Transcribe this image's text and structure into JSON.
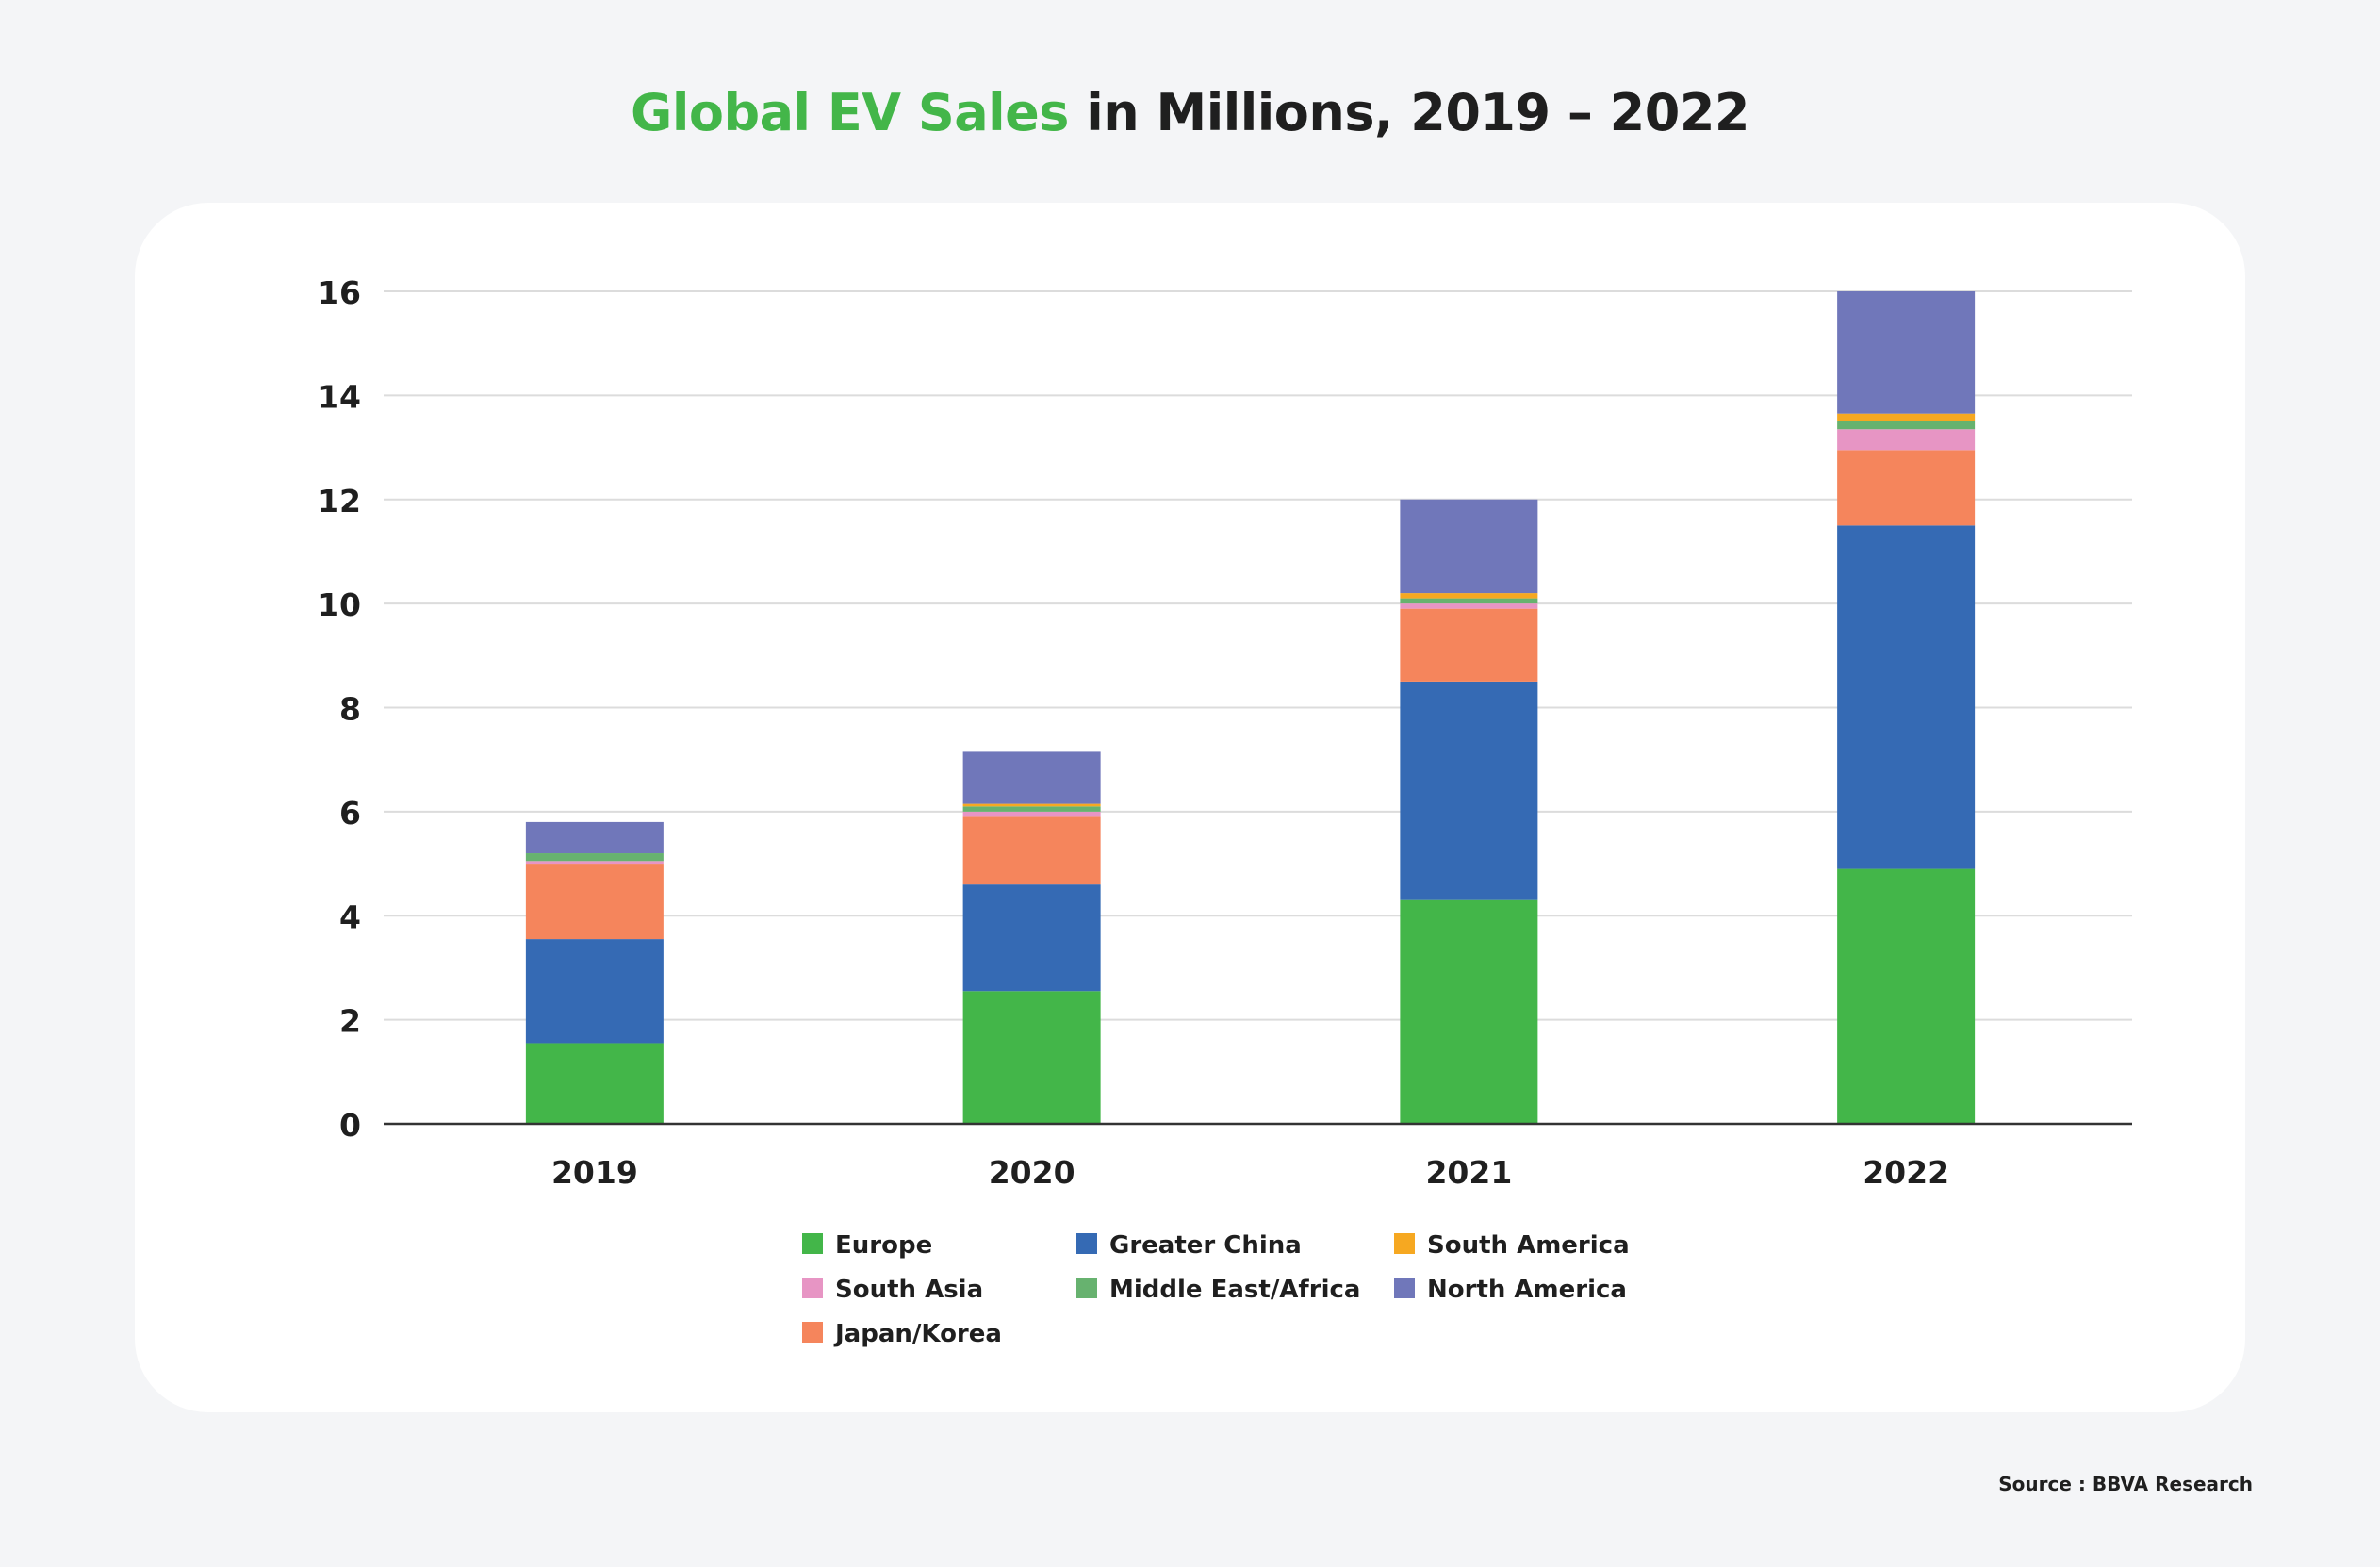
{
  "title": {
    "highlight": "Global EV Sales",
    "rest": " in Millions, 2019 – 2022"
  },
  "source": "Source : BBVA Research",
  "chart_data": {
    "type": "bar",
    "stacked": true,
    "title": "Global EV Sales in Millions, 2019 – 2022",
    "xlabel": "",
    "ylabel": "",
    "categories": [
      "2019",
      "2020",
      "2021",
      "2022"
    ],
    "ylim": [
      0,
      16
    ],
    "yticks": [
      0,
      2,
      4,
      6,
      8,
      10,
      12,
      14,
      16
    ],
    "grid": true,
    "legend_position": "bottom",
    "series": [
      {
        "name": "Europe",
        "color": "#43b649",
        "values": [
          1.55,
          2.55,
          4.3,
          4.9
        ]
      },
      {
        "name": "Greater China",
        "color": "#356ab4",
        "values": [
          2.0,
          2.05,
          4.2,
          6.6
        ]
      },
      {
        "name": "Japan/Korea",
        "color": "#f5855c",
        "values": [
          1.45,
          1.3,
          1.4,
          1.45
        ]
      },
      {
        "name": "South Asia",
        "color": "#e795c4",
        "values": [
          0.05,
          0.1,
          0.1,
          0.4
        ]
      },
      {
        "name": "Middle East/Africa",
        "color": "#67b26f",
        "values": [
          0.15,
          0.1,
          0.1,
          0.15
        ]
      },
      {
        "name": "South America",
        "color": "#f6a821",
        "values": [
          0.0,
          0.05,
          0.1,
          0.15
        ]
      },
      {
        "name": "North America",
        "color": "#7077ba",
        "values": [
          0.6,
          1.0,
          1.8,
          2.35
        ]
      }
    ],
    "legend_order": [
      "Europe",
      "Greater China",
      "South America",
      "South Asia",
      "Middle East/Africa",
      "North America",
      "Japan/Korea"
    ]
  }
}
